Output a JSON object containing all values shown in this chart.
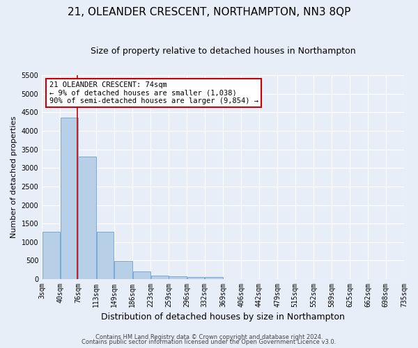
{
  "title": "21, OLEANDER CRESCENT, NORTHAMPTON, NN3 8QP",
  "subtitle": "Size of property relative to detached houses in Northampton",
  "xlabel": "Distribution of detached houses by size in Northampton",
  "ylabel": "Number of detached properties",
  "footnote1": "Contains HM Land Registry data © Crown copyright and database right 2024.",
  "footnote2": "Contains public sector information licensed under the Open Government Licence v3.0.",
  "annotation_title": "21 OLEANDER CRESCENT: 74sqm",
  "annotation_line1": "← 9% of detached houses are smaller (1,038)",
  "annotation_line2": "90% of semi-detached houses are larger (9,854) →",
  "bar_color": "#b8cfe8",
  "bar_edge_color": "#6a9fd8",
  "vline_color": "#cc0000",
  "vline_x": 74,
  "bin_edges": [
    3,
    40,
    76,
    113,
    149,
    186,
    223,
    259,
    296,
    332,
    369,
    406,
    442,
    479,
    515,
    552,
    589,
    625,
    662,
    698,
    735
  ],
  "bar_heights": [
    1270,
    4350,
    3300,
    1270,
    490,
    215,
    100,
    80,
    60,
    60,
    0,
    0,
    0,
    0,
    0,
    0,
    0,
    0,
    0,
    0
  ],
  "xlim": [
    3,
    735
  ],
  "ylim": [
    0,
    5500
  ],
  "yticks": [
    0,
    500,
    1000,
    1500,
    2000,
    2500,
    3000,
    3500,
    4000,
    4500,
    5000,
    5500
  ],
  "background_color": "#e8eef8",
  "plot_bg_color": "#e8eef8",
  "grid_color": "#ffffff",
  "title_fontsize": 11,
  "subtitle_fontsize": 9,
  "xlabel_fontsize": 9,
  "ylabel_fontsize": 8,
  "tick_fontsize": 7,
  "annotation_fontsize": 7.5,
  "annotation_box_color": "#ffffff",
  "annotation_box_edge": "#cc0000",
  "footnote_fontsize": 6
}
